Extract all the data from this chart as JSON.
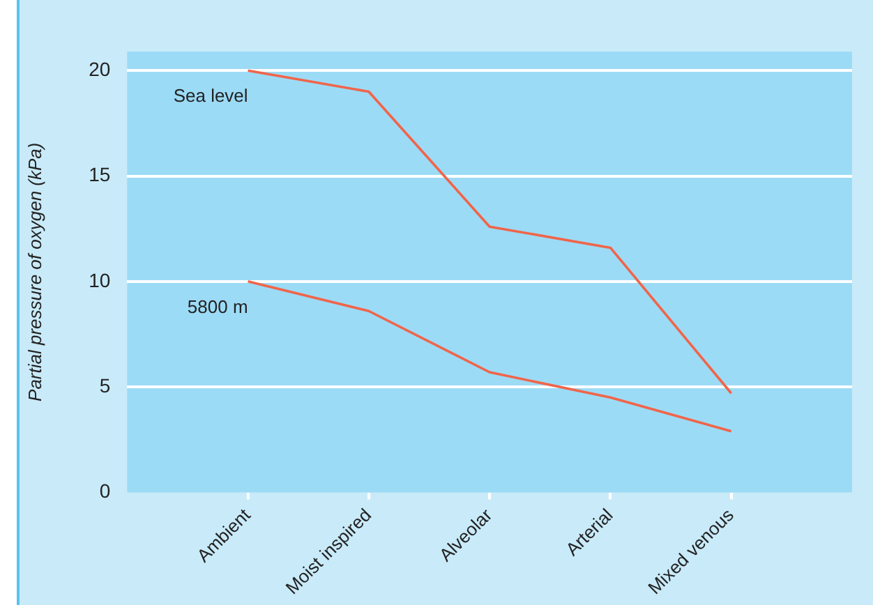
{
  "chart_data": {
    "type": "line",
    "ylabel": "Partial pressure of oxygen (kPa)",
    "categories": [
      null,
      "Ambient",
      "Moist inspired",
      "Alveolar",
      "Arterial",
      "Mixed venous",
      null
    ],
    "series": [
      {
        "name": "Sea level",
        "color": "#f0654a",
        "values": [
          null,
          20,
          19,
          12.6,
          11.6,
          4.7,
          null
        ]
      },
      {
        "name": "5800 m",
        "color": "#f0654a",
        "values": [
          null,
          10,
          8.6,
          5.7,
          4.5,
          2.9,
          null
        ]
      }
    ],
    "ylim": [
      0,
      20.9
    ],
    "yticks": [
      0,
      5,
      10,
      15,
      20
    ],
    "grid": "y",
    "legend": false,
    "marker": "none",
    "line_style": "solid"
  }
}
